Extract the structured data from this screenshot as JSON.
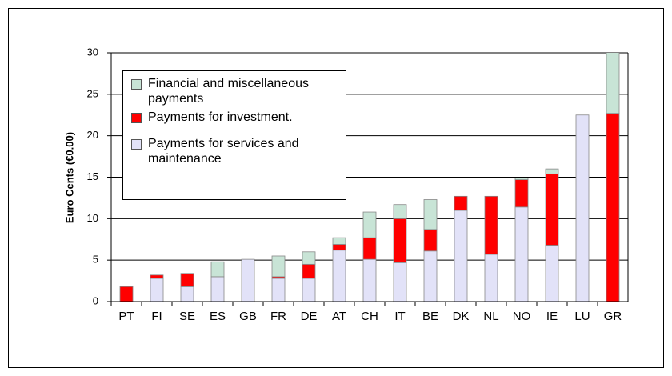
{
  "chart_data": {
    "type": "stacked_bar",
    "ylabel": "Euro Cents (€0.00)",
    "categories": [
      "PT",
      "FI",
      "SE",
      "ES",
      "GB",
      "FR",
      "DE",
      "AT",
      "CH",
      "IT",
      "BE",
      "DK",
      "NL",
      "NO",
      "IE",
      "LU",
      "GR"
    ],
    "series": [
      {
        "name": "Payments for services and maintenance",
        "color": "#e2e2f8",
        "values": [
          0,
          2.8,
          1.8,
          3.0,
          5.1,
          2.8,
          2.8,
          6.2,
          5.1,
          4.7,
          6.1,
          11.0,
          5.7,
          11.4,
          6.8,
          22.5,
          0
        ]
      },
      {
        "name": "Payments for investment.",
        "color": "#ff0000",
        "values": [
          1.8,
          0.4,
          1.6,
          0,
          0,
          0.2,
          1.7,
          0.7,
          2.6,
          5.3,
          2.6,
          1.7,
          7.0,
          3.3,
          8.6,
          0,
          22.7
        ]
      },
      {
        "name": "Financial and miscellaneous payments",
        "color": "#c8e4d6",
        "values": [
          0,
          0,
          0,
          1.8,
          0,
          2.5,
          1.5,
          0.8,
          3.1,
          1.7,
          3.6,
          0,
          0,
          0.2,
          0.6,
          0,
          7.8
        ]
      }
    ],
    "ylim": [
      0,
      30
    ],
    "yticks": [
      0,
      5,
      10,
      15,
      20,
      25,
      30
    ],
    "grid": true
  }
}
